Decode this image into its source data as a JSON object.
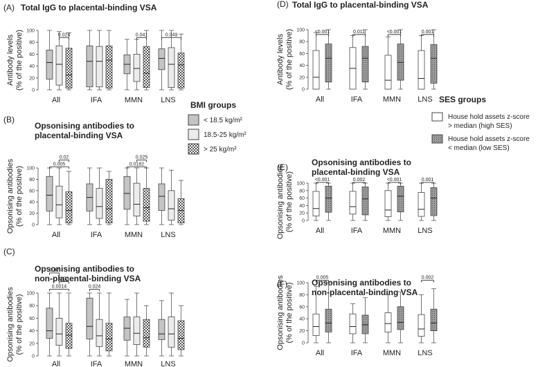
{
  "colors": {
    "bmi_low": "#c4c4c4",
    "bmi_mid": "#ececec",
    "bmi_high": "#ffffff",
    "ses_high": "#ffffff",
    "ses_low": "#9a9a9a",
    "outline": "#444444"
  },
  "legends": {
    "bmi": {
      "title": "BMI groups",
      "items": [
        {
          "label": "< 18.5 kg/m²",
          "fill": "bmi_low",
          "pattern": "none"
        },
        {
          "label": "18.5-25 kg/m²",
          "fill": "bmi_mid",
          "pattern": "none"
        },
        {
          "label": "> 25 kg/m²",
          "fill": "bmi_high",
          "pattern": "check"
        }
      ]
    },
    "ses": {
      "title": "SES groups",
      "items": [
        {
          "label1": "House hold assets z-score",
          "label2": "> median (high SES)",
          "fill": "ses_high",
          "pattern": "none"
        },
        {
          "label1": "House hold assets z-score",
          "label2": "< median (low SES)",
          "fill": "ses_low",
          "pattern": "dots"
        }
      ]
    }
  },
  "chart_data": [
    {
      "id": "A",
      "type": "box",
      "panel_label": "(A)",
      "title_lines": [
        "Total IgG to placental-binding VSA"
      ],
      "ylabel": [
        "Antibody levels",
        "(% of the positive)"
      ],
      "ylim": [
        0,
        100
      ],
      "yticks": [
        0,
        20,
        40,
        60,
        80,
        100
      ],
      "categories": [
        "All",
        "IFA",
        "MMN",
        "LNS"
      ],
      "grouping": "bmi",
      "series": [
        {
          "name": "< 18.5 kg/m²",
          "boxes": [
            [
              0,
              18,
              46,
              67,
              100
            ],
            [
              0,
              5,
              48,
              74,
              100
            ],
            [
              0,
              27,
              43,
              59,
              85
            ],
            [
              0,
              34,
              53,
              69,
              100
            ]
          ]
        },
        {
          "name": "18.5-25 kg/m²",
          "boxes": [
            [
              0,
              8,
              43,
              74,
              98
            ],
            [
              0,
              5,
              48,
              73,
              100
            ],
            [
              0,
              14,
              36,
              60,
              85
            ],
            [
              0,
              4,
              43,
              71,
              100
            ]
          ]
        },
        {
          "name": "> 25 kg/m²",
          "boxes": [
            [
              0,
              3,
              25,
              70,
              96
            ],
            [
              0,
              3,
              50,
              74,
              100
            ],
            [
              0,
              4,
              28,
              73,
              100
            ],
            [
              0,
              3,
              42,
              62,
              94
            ]
          ]
        }
      ],
      "comparisons": [
        {
          "label": "0.024",
          "cat": 0,
          "from": 1,
          "to": 2,
          "y": 88
        },
        {
          "label": "0.041",
          "cat": 2,
          "from": 1,
          "to": 2,
          "y": 88
        },
        {
          "label": "0.049",
          "cat": 3,
          "from": 0,
          "to": 2,
          "y": 88
        }
      ]
    },
    {
      "id": "B",
      "type": "box",
      "panel_label": "(B)",
      "title_lines": [
        "Opsonising antibodies to",
        "placental-binding VSA"
      ],
      "ylabel": [
        "Opsonising antibodies",
        "(% of the positive)"
      ],
      "ylim": [
        0,
        100
      ],
      "yticks": [
        0,
        20,
        40,
        60,
        80,
        100
      ],
      "categories": [
        "All",
        "IFA",
        "MMN",
        "LNS"
      ],
      "grouping": "bmi",
      "series": [
        {
          "name": "< 18.5 kg/m²",
          "boxes": [
            [
              0,
              24,
              52,
              85,
              100
            ],
            [
              0,
              24,
              48,
              72,
              100
            ],
            [
              0,
              27,
              55,
              85,
              100
            ],
            [
              0,
              25,
              50,
              72,
              100
            ]
          ]
        },
        {
          "name": "18.5-25 kg/m²",
          "boxes": [
            [
              0,
              12,
              35,
              68,
              100
            ],
            [
              0,
              11,
              32,
              64,
              100
            ],
            [
              0,
              15,
              36,
              73,
              100
            ],
            [
              0,
              8,
              28,
              60,
              96
            ]
          ]
        },
        {
          "name": "> 25 kg/m²",
          "boxes": [
            [
              0,
              3,
              25,
              58,
              94
            ],
            [
              0,
              3,
              28,
              80,
              94
            ],
            [
              0,
              6,
              30,
              64,
              100
            ],
            [
              0,
              3,
              25,
              46,
              78
            ]
          ]
        }
      ],
      "comparisons": [
        {
          "label": "0.02",
          "cat": 0,
          "from": 1,
          "to": 2,
          "y": 114
        },
        {
          "label": "0.005",
          "cat": 0,
          "from": 0,
          "to": 2,
          "y": 102
        },
        {
          "label": "0.025",
          "cat": 2,
          "from": 1,
          "to": 2,
          "y": 114
        },
        {
          "label": "0.0182",
          "cat": 2,
          "from": 0,
          "to": 2,
          "y": 102
        }
      ]
    },
    {
      "id": "C",
      "type": "box",
      "panel_label": "(C)",
      "title_lines": [
        "Opsonising antibodies to",
        "non-placental-binding VSA"
      ],
      "ylabel": [
        "Opsonising antibodies",
        "(% of the positive)"
      ],
      "ylim": [
        0,
        100
      ],
      "yticks": [
        0,
        20,
        40,
        60,
        80,
        100
      ],
      "categories": [
        "All",
        "IFA",
        "MMN",
        "LNS"
      ],
      "grouping": "bmi",
      "series": [
        {
          "name": "< 18.5 kg/m²",
          "boxes": [
            [
              0,
              28,
              40,
              76,
              100
            ],
            [
              0,
              27,
              47,
              92,
              100
            ],
            [
              0,
              25,
              44,
              62,
              90
            ],
            [
              0,
              26,
              35,
              58,
              88
            ]
          ]
        },
        {
          "name": "18.5-25 kg/m²",
          "boxes": [
            [
              0,
              17,
              35,
              60,
              100
            ],
            [
              0,
              15,
              32,
              58,
              100
            ],
            [
              0,
              18,
              36,
              62,
              100
            ],
            [
              0,
              14,
              35,
              62,
              100
            ]
          ]
        },
        {
          "name": "> 25 kg/m²",
          "boxes": [
            [
              0,
              12,
              33,
              52,
              100
            ],
            [
              0,
              8,
              27,
              52,
              100
            ],
            [
              0,
              14,
              29,
              58,
              80
            ],
            [
              0,
              10,
              28,
              56,
              80
            ]
          ]
        }
      ],
      "comparisons": [
        {
          "label": "0.02",
          "cat": 0,
          "from": 0,
          "to": 1,
          "y": 132
        },
        {
          "label": "0.03",
          "cat": 0,
          "from": 1,
          "to": 2,
          "y": 118
        },
        {
          "label": "0.0014",
          "cat": 0,
          "from": 0,
          "to": 2,
          "y": 106
        },
        {
          "label": "0.024",
          "cat": 1,
          "from": 0,
          "to": 1,
          "y": 106
        }
      ]
    },
    {
      "id": "D",
      "type": "box",
      "panel_label": "(D)",
      "title_lines": [
        "Total IgG to placental-binding VSA"
      ],
      "ylabel": [
        "Antibody levels",
        "(% of the positive)"
      ],
      "ylim": [
        0,
        100
      ],
      "yticks": [
        0,
        20,
        40,
        60,
        80,
        100
      ],
      "categories": [
        "All",
        "IFA",
        "MMN",
        "LNS"
      ],
      "grouping": "ses",
      "series": [
        {
          "name": "House hold assets z-score > median (high SES)",
          "boxes": [
            [
              0,
              0,
              20,
              65,
              95
            ],
            [
              0,
              0,
              35,
              70,
              90
            ],
            [
              0,
              0,
              15,
              57,
              88
            ],
            [
              0,
              0,
              18,
              65,
              90
            ]
          ]
        },
        {
          "name": "House hold assets z-score < median (low SES)",
          "boxes": [
            [
              0,
              12,
              52,
              76,
              100
            ],
            [
              0,
              12,
              52,
              72,
              100
            ],
            [
              0,
              15,
              45,
              76,
              100
            ],
            [
              0,
              10,
              52,
              75,
              100
            ]
          ]
        }
      ],
      "comparisons": [
        {
          "label": "<0.001",
          "cat": 0,
          "from": 0,
          "to": 1,
          "y": 92
        },
        {
          "label": "0.011",
          "cat": 1,
          "from": 0,
          "to": 1,
          "y": 92
        },
        {
          "label": "<0.001",
          "cat": 2,
          "from": 0,
          "to": 1,
          "y": 92
        },
        {
          "label": "0.001",
          "cat": 3,
          "from": 0,
          "to": 1,
          "y": 92
        }
      ]
    },
    {
      "id": "E",
      "type": "box",
      "panel_label": "(E)",
      "title_lines": [
        "Opsonising antibodies to",
        "placental-binding VSA"
      ],
      "ylabel": [
        "Opsonising antibodies",
        "(% of the positive)"
      ],
      "ylim": [
        0,
        100
      ],
      "yticks": [
        0,
        20,
        40,
        60,
        80,
        100
      ],
      "categories": [
        "All",
        "IFA",
        "MMN",
        "LNS"
      ],
      "grouping": "ses",
      "series": [
        {
          "name": "House hold assets z-score > median (high SES)",
          "boxes": [
            [
              0,
              12,
              32,
              78,
              100
            ],
            [
              0,
              17,
              37,
              78,
              100
            ],
            [
              0,
              10,
              28,
              80,
              100
            ],
            [
              0,
              11,
              30,
              75,
              100
            ]
          ]
        },
        {
          "name": "House hold assets z-score < median (low SES)",
          "boxes": [
            [
              0,
              22,
              60,
              92,
              100
            ],
            [
              0,
              15,
              58,
              90,
              100
            ],
            [
              0,
              23,
              65,
              92,
              100
            ],
            [
              0,
              13,
              60,
              88,
              100
            ]
          ]
        }
      ],
      "comparisons": [
        {
          "label": "<0.001",
          "cat": 0,
          "from": 0,
          "to": 1,
          "y": 102
        },
        {
          "label": "0.002",
          "cat": 1,
          "from": 0,
          "to": 1,
          "y": 102
        },
        {
          "label": "<0.001",
          "cat": 2,
          "from": 0,
          "to": 1,
          "y": 102
        },
        {
          "label": "0.001",
          "cat": 3,
          "from": 0,
          "to": 1,
          "y": 102
        }
      ]
    },
    {
      "id": "F",
      "type": "box",
      "panel_label": "(F)",
      "title_lines": [
        "Opsonising antibodies to",
        "non-placental-binding VSA"
      ],
      "ylabel": [
        "Opsonising antibodies",
        "(% of the positive)"
      ],
      "ylim": [
        0,
        100
      ],
      "yticks": [
        0,
        20,
        40,
        60,
        80,
        100
      ],
      "categories": [
        "All",
        "IFA",
        "MMN",
        "LNS"
      ],
      "grouping": "ses",
      "series": [
        {
          "name": "House hold assets z-score > median (high SES)",
          "boxes": [
            [
              0,
              12,
              27,
              48,
              94
            ],
            [
              0,
              15,
              27,
              48,
              65
            ],
            [
              0,
              18,
              32,
              50,
              80
            ],
            [
              0,
              11,
              23,
              47,
              80
            ]
          ]
        },
        {
          "name": "House hold assets z-score < median (low SES)",
          "boxes": [
            [
              0,
              18,
              33,
              56,
              100
            ],
            [
              0,
              15,
              30,
              46,
              75
            ],
            [
              0,
              22,
              34,
              60,
              85
            ],
            [
              0,
              20,
              33,
              56,
              90
            ]
          ]
        }
      ],
      "comparisons": [
        {
          "label": "0.005",
          "cat": 0,
          "from": 0,
          "to": 1,
          "y": 104
        },
        {
          "label": "0.002",
          "cat": 3,
          "from": 0,
          "to": 1,
          "y": 104
        }
      ]
    }
  ]
}
